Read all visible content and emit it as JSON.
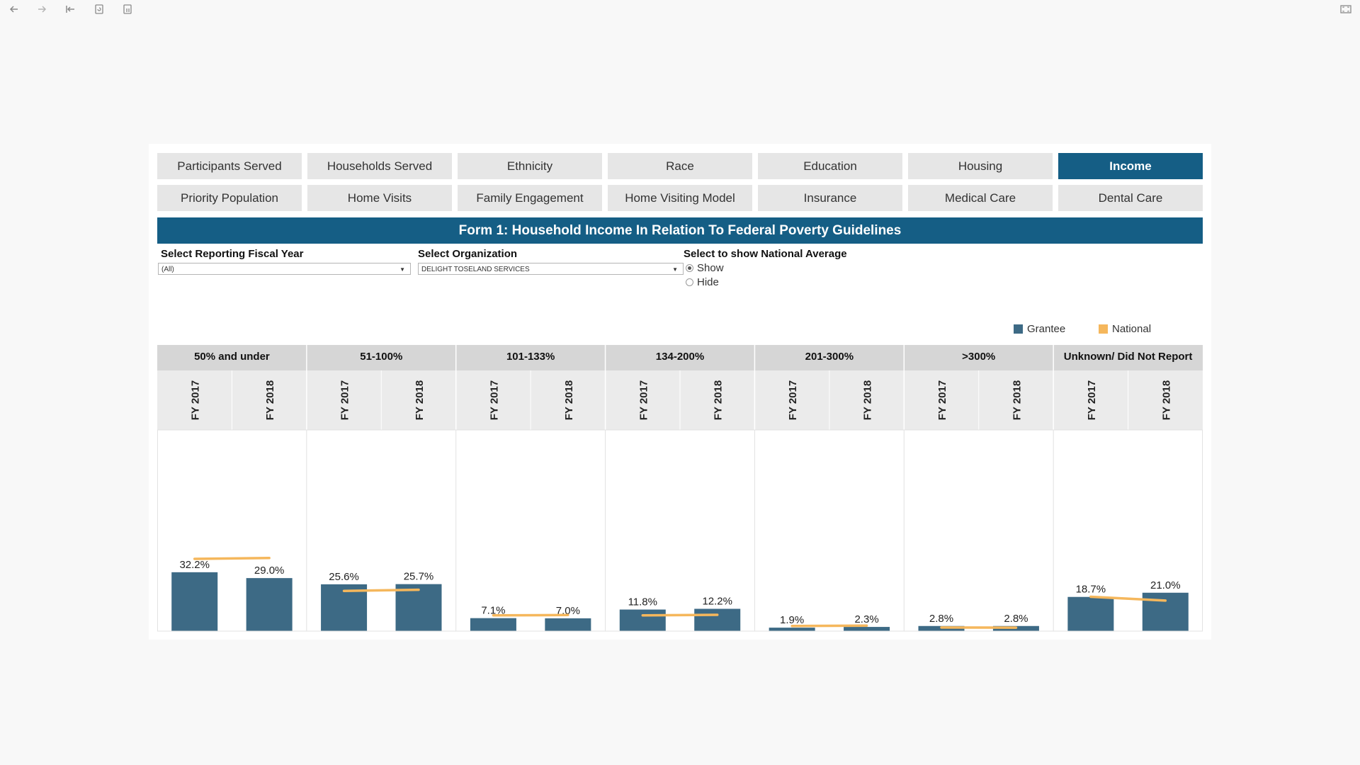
{
  "toolbar": {
    "icons": [
      "back-icon",
      "forward-icon",
      "skip-to-start-icon",
      "revert-icon",
      "pause-icon",
      "fullscreen-icon"
    ]
  },
  "tabs": [
    {
      "label": "Participants Served",
      "active": false
    },
    {
      "label": "Households Served",
      "active": false
    },
    {
      "label": "Ethnicity",
      "active": false
    },
    {
      "label": "Race",
      "active": false
    },
    {
      "label": "Education",
      "active": false
    },
    {
      "label": "Housing",
      "active": false
    },
    {
      "label": "Income",
      "active": true
    },
    {
      "label": "Priority Population",
      "active": false
    },
    {
      "label": "Home Visits",
      "active": false
    },
    {
      "label": "Family Engagement",
      "active": false
    },
    {
      "label": "Home Visiting Model",
      "active": false
    },
    {
      "label": "Insurance",
      "active": false
    },
    {
      "label": "Medical Care",
      "active": false
    },
    {
      "label": "Dental Care",
      "active": false
    }
  ],
  "form_title": "Form 1: Household Income In Relation To Federal Poverty Guidelines",
  "filters": {
    "fiscal_year": {
      "label": "Select Reporting Fiscal Year",
      "value": "(All)"
    },
    "organization": {
      "label": "Select Organization",
      "value": "DELIGHT TOSELAND SERVICES"
    },
    "national_average": {
      "label": "Select to show National Average",
      "options": [
        {
          "label": "Show",
          "selected": true
        },
        {
          "label": "Hide",
          "selected": false
        }
      ]
    }
  },
  "legend": [
    {
      "label": "Grantee",
      "color": "#3d6a85"
    },
    {
      "label": "National",
      "color": "#f5b75c"
    }
  ],
  "colors": {
    "accent": "#155e85",
    "grantee": "#3d6a85",
    "national": "#f5b75c",
    "header_bg": "#d6d6d6",
    "subheader_bg": "#ebebeb"
  },
  "chart_data": {
    "type": "bar",
    "groups": [
      "50% and under",
      "51-100%",
      "101-133%",
      "134-200%",
      "201-300%",
      ">300%",
      "Unknown/ Did Not Report"
    ],
    "subcategories": [
      "FY 2017",
      "FY 2018"
    ],
    "series": [
      {
        "name": "Grantee",
        "values": [
          [
            32.2,
            29.0
          ],
          [
            25.6,
            25.7
          ],
          [
            7.1,
            7.0
          ],
          [
            11.8,
            12.2
          ],
          [
            1.9,
            2.3
          ],
          [
            2.8,
            2.8
          ],
          [
            18.7,
            21.0
          ]
        ],
        "labels": [
          [
            "32.2%",
            "29.0%"
          ],
          [
            "25.6%",
            "25.7%"
          ],
          [
            "7.1%",
            "7.0%"
          ],
          [
            "11.8%",
            "12.2%"
          ],
          [
            "1.9%",
            "2.3%"
          ],
          [
            "2.8%",
            "2.8%"
          ],
          [
            "18.7%",
            "21.0%"
          ]
        ]
      },
      {
        "name": "National",
        "values": [
          [
            39.5,
            40.0
          ],
          [
            22.0,
            22.6
          ],
          [
            8.6,
            8.8
          ],
          [
            8.6,
            8.9
          ],
          [
            2.8,
            3.0
          ],
          [
            2.0,
            1.9
          ],
          [
            18.8,
            16.7
          ]
        ]
      }
    ],
    "ylim": [
      0,
      110
    ],
    "grid": false,
    "legend_position": "top-right"
  }
}
